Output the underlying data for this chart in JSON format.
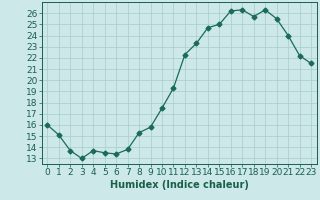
{
  "x": [
    0,
    1,
    2,
    3,
    4,
    5,
    6,
    7,
    8,
    9,
    10,
    11,
    12,
    13,
    14,
    15,
    16,
    17,
    18,
    19,
    20,
    21,
    22,
    23
  ],
  "y": [
    16.0,
    15.1,
    13.7,
    13.0,
    13.7,
    13.5,
    13.4,
    13.8,
    15.3,
    15.8,
    17.5,
    19.3,
    22.3,
    23.3,
    24.7,
    25.0,
    26.2,
    26.3,
    25.7,
    26.3,
    25.5,
    24.0,
    22.2,
    21.5
  ],
  "line_color": "#1a6b5a",
  "marker": "D",
  "markersize": 2.5,
  "linewidth": 0.9,
  "xlabel": "Humidex (Indice chaleur)",
  "xlim": [
    -0.5,
    23.5
  ],
  "ylim": [
    12.5,
    27.0
  ],
  "yticks": [
    13,
    14,
    15,
    16,
    17,
    18,
    19,
    20,
    21,
    22,
    23,
    24,
    25,
    26
  ],
  "xticks": [
    0,
    1,
    2,
    3,
    4,
    5,
    6,
    7,
    8,
    9,
    10,
    11,
    12,
    13,
    14,
    15,
    16,
    17,
    18,
    19,
    20,
    21,
    22,
    23
  ],
  "background_color": "#cce8e8",
  "grid_color": "#aacccc",
  "tick_label_color": "#1a5f4a",
  "axis_color": "#1a5f4a",
  "xlabel_color": "#1a5f4a",
  "xlabel_fontsize": 7,
  "tick_fontsize": 6.5
}
